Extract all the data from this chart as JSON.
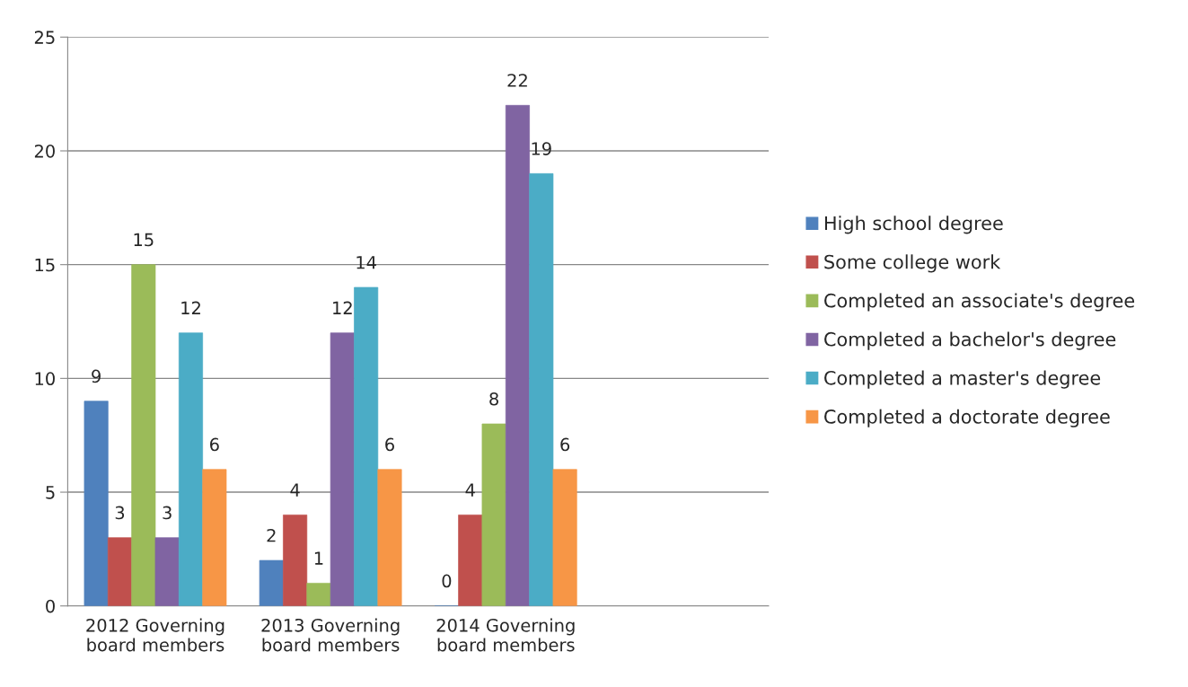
{
  "chart_data": {
    "type": "bar",
    "categories": [
      "2012 Governing\nboard members",
      "2013 Governing\nboard members",
      "2014 Governing\nboard members",
      null
    ],
    "series": [
      {
        "name": "High school degree",
        "color": "#4f81bd",
        "values": [
          9,
          2,
          0,
          null
        ]
      },
      {
        "name": "Some college work",
        "color": "#c0504d",
        "values": [
          3,
          4,
          4,
          null
        ]
      },
      {
        "name": "Completed an associate's degree",
        "color": "#9bbb59",
        "values": [
          15,
          1,
          8,
          null
        ]
      },
      {
        "name": "Completed a bachelor's degree",
        "color": "#8064a2",
        "values": [
          3,
          12,
          22,
          null
        ]
      },
      {
        "name": "Completed a master's degree",
        "color": "#4bacc6",
        "values": [
          12,
          14,
          19,
          null
        ]
      },
      {
        "name": "Completed a doctorate degree",
        "color": "#f79646",
        "values": [
          6,
          6,
          6,
          null
        ]
      }
    ],
    "ylim": [
      0,
      25
    ],
    "yticks": [
      0,
      5,
      10,
      15,
      20,
      25
    ],
    "grid": "y",
    "legend": "right",
    "data_labels": true
  }
}
